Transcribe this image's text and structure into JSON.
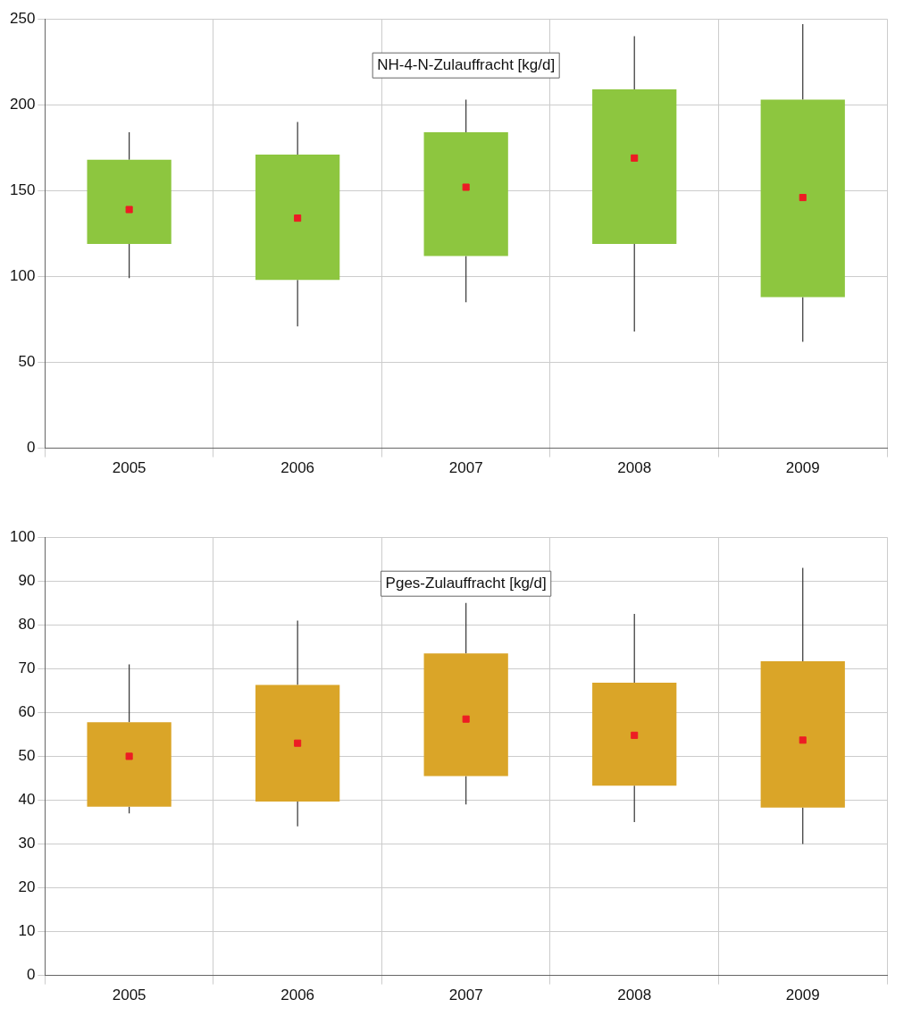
{
  "chart_data": [
    {
      "type": "box",
      "title": "NH-4-N-Zulauffracht [kg/d]",
      "categories": [
        "2005",
        "2006",
        "2007",
        "2008",
        "2009"
      ],
      "ylim": [
        0,
        250
      ],
      "yticks": [
        0,
        50,
        100,
        150,
        200,
        250
      ],
      "grid": true,
      "legend": false,
      "marker": "square",
      "series": [
        {
          "color": "#8dc63f",
          "boxes": [
            {
              "low": 99,
              "q1": 119,
              "median": 139,
              "q3": 168,
              "high": 184
            },
            {
              "low": 71,
              "q1": 98,
              "median": 134,
              "q3": 171,
              "high": 190
            },
            {
              "low": 85,
              "q1": 112,
              "median": 152,
              "q3": 184,
              "high": 203
            },
            {
              "low": 68,
              "q1": 119,
              "median": 169,
              "q3": 209,
              "high": 240
            },
            {
              "low": 62,
              "q1": 88,
              "median": 146,
              "q3": 203,
              "high": 247
            }
          ]
        }
      ]
    },
    {
      "type": "box",
      "title": "Pges-Zulauffracht [kg/d]",
      "categories": [
        "2005",
        "2006",
        "2007",
        "2008",
        "2009"
      ],
      "ylim": [
        0,
        100
      ],
      "yticks": [
        0,
        10,
        20,
        30,
        40,
        50,
        60,
        70,
        80,
        90,
        100
      ],
      "grid": true,
      "legend": false,
      "marker": "square",
      "series": [
        {
          "color": "#daa528",
          "boxes": [
            {
              "low": 37,
              "q1": 38.5,
              "median": 50,
              "q3": 57.8,
              "high": 71
            },
            {
              "low": 34,
              "q1": 39.7,
              "median": 53,
              "q3": 66.3,
              "high": 81
            },
            {
              "low": 39,
              "q1": 45.5,
              "median": 58.5,
              "q3": 73.5,
              "high": 85
            },
            {
              "low": 35,
              "q1": 43.3,
              "median": 54.8,
              "q3": 66.8,
              "high": 82.5
            },
            {
              "low": 30,
              "q1": 38.3,
              "median": 53.7,
              "q3": 71.7,
              "high": 93
            }
          ]
        }
      ]
    }
  ]
}
